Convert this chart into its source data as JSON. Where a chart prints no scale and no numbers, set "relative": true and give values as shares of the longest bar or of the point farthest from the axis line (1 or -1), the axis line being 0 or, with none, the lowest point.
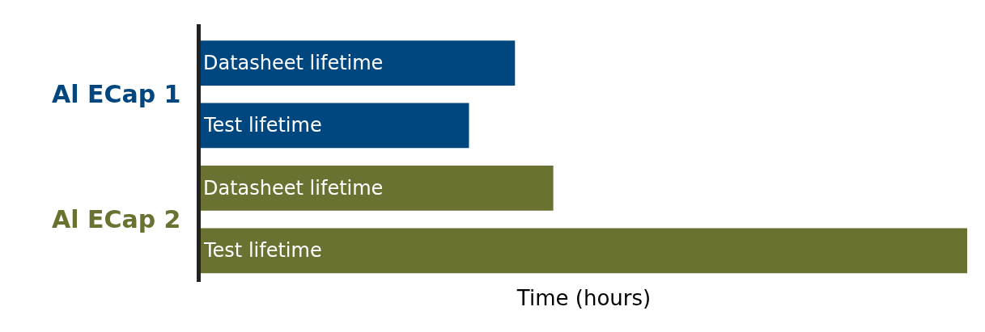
{
  "chart_data": {
    "type": "bar",
    "orientation": "horizontal",
    "relative": true,
    "xlabel": "Time (hours)",
    "categories": [
      "Datasheet lifetime",
      "Test lifetime",
      "Datasheet lifetime",
      "Test lifetime"
    ],
    "series": [
      {
        "name": "Al ECap 1",
        "color": "#00467f",
        "values": [
          0.41,
          0.35,
          null,
          null
        ]
      },
      {
        "name": "Al ECap 2",
        "color": "#6b7131",
        "values": [
          null,
          null,
          0.46,
          1
        ]
      }
    ],
    "legend": false
  }
}
